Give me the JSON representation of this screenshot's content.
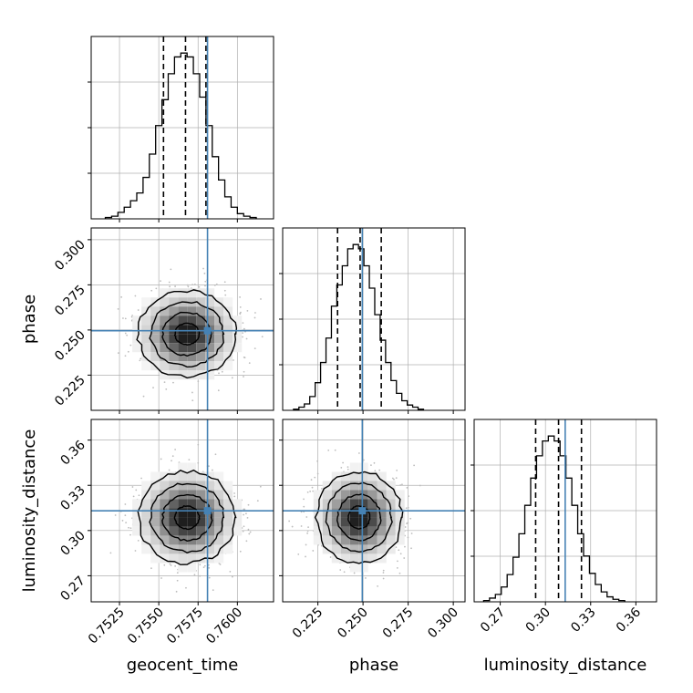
{
  "chart_data": {
    "type": "corner",
    "parameters": [
      "geocent_time",
      "phase",
      "luminosity_distance"
    ],
    "axis_labels": {
      "geocent_time": "geocent_time",
      "phase": "phase",
      "luminosity_distance": "luminosity_distance"
    },
    "ranges": {
      "geocent_time": [
        0.7507,
        0.7623
      ],
      "phase": [
        0.2055,
        0.3065
      ],
      "luminosity_distance": [
        0.2527,
        0.3737
      ]
    },
    "ticks": {
      "geocent_time": [
        {
          "value": 0.7525,
          "label": "0.7525"
        },
        {
          "value": 0.755,
          "label": "0.7550"
        },
        {
          "value": 0.7575,
          "label": "0.7575"
        },
        {
          "value": 0.76,
          "label": "0.7600"
        }
      ],
      "phase": [
        {
          "value": 0.225,
          "label": "0.225"
        },
        {
          "value": 0.25,
          "label": "0.250"
        },
        {
          "value": 0.275,
          "label": "0.275"
        },
        {
          "value": 0.3,
          "label": "0.300"
        }
      ],
      "luminosity_distance": [
        {
          "value": 0.27,
          "label": "0.27"
        },
        {
          "value": 0.3,
          "label": "0.30"
        },
        {
          "value": 0.33,
          "label": "0.33"
        },
        {
          "value": 0.36,
          "label": "0.36"
        }
      ]
    },
    "truths": {
      "geocent_time": 0.7581,
      "phase": 0.2496,
      "luminosity_distance": 0.3131
    },
    "quantiles": {
      "geocent_time": [
        0.7553,
        0.7567,
        0.758
      ],
      "phase": [
        0.2359,
        0.2484,
        0.2601
      ],
      "luminosity_distance": [
        0.2935,
        0.3087,
        0.3239
      ]
    },
    "histograms": {
      "geocent_time": {
        "edges": [
          0.7516,
          0.752,
          0.7524,
          0.7528,
          0.7532,
          0.7536,
          0.754,
          0.7544,
          0.7548,
          0.7552,
          0.7556,
          0.756,
          0.7564,
          0.7568,
          0.7572,
          0.7576,
          0.758,
          0.7584,
          0.7588,
          0.7592,
          0.7596,
          0.76,
          0.7604,
          0.7608,
          0.7612
        ],
        "counts": [
          1,
          2,
          5,
          9,
          14,
          20,
          32,
          50,
          72,
          92,
          112,
          125,
          128,
          125,
          112,
          94,
          72,
          48,
          30,
          17,
          9,
          4,
          2,
          1
        ]
      },
      "phase": {
        "edges": [
          0.2115,
          0.2145,
          0.2175,
          0.2205,
          0.2235,
          0.2265,
          0.2295,
          0.2325,
          0.2355,
          0.2385,
          0.2415,
          0.2445,
          0.2475,
          0.2505,
          0.2535,
          0.2565,
          0.2595,
          0.2625,
          0.2655,
          0.2685,
          0.2715,
          0.2745,
          0.2775,
          0.2805,
          0.2835
        ],
        "counts": [
          1,
          3,
          6,
          13,
          26,
          45,
          68,
          98,
          118,
          136,
          152,
          156,
          152,
          136,
          115,
          90,
          66,
          45,
          28,
          16,
          9,
          5,
          3,
          1
        ]
      },
      "luminosity_distance": {
        "edges": [
          0.259,
          0.2629,
          0.2668,
          0.2707,
          0.2746,
          0.2785,
          0.2824,
          0.2863,
          0.2902,
          0.2941,
          0.298,
          0.3019,
          0.3058,
          0.3097,
          0.3136,
          0.3175,
          0.3214,
          0.3253,
          0.3292,
          0.3331,
          0.337,
          0.3409,
          0.3448,
          0.3487,
          0.3526
        ],
        "counts": [
          1,
          3,
          6,
          12,
          22,
          36,
          55,
          78,
          100,
          118,
          130,
          134,
          130,
          118,
          100,
          78,
          55,
          37,
          23,
          14,
          8,
          4,
          2,
          1
        ]
      }
    },
    "pairs": [
      {
        "x": "geocent_time",
        "y": "phase",
        "centre": [
          0.7568,
          0.2478
        ],
        "spread": [
          0.00155,
          0.0119
        ],
        "rho": 0.0,
        "seed": 11
      },
      {
        "x": "geocent_time",
        "y": "luminosity_distance",
        "centre": [
          0.7568,
          0.3087
        ],
        "spread": [
          0.00155,
          0.0152
        ],
        "rho": 0.0,
        "seed": 23
      },
      {
        "x": "phase",
        "y": "luminosity_distance",
        "centre": [
          0.2478,
          0.3087
        ],
        "spread": [
          0.0119,
          0.0152
        ],
        "rho": 0.0,
        "seed": 37
      }
    ],
    "contour_levels_sigma": [
      0.5,
      1.0,
      1.5,
      2.0
    ],
    "colors": {
      "truth": "#4682b4",
      "histogram": "#000000",
      "quantile": "#000000",
      "grid": "#b0b0b0",
      "scatter": "#bdbdbd",
      "contour": "#000000"
    },
    "grid": true
  }
}
